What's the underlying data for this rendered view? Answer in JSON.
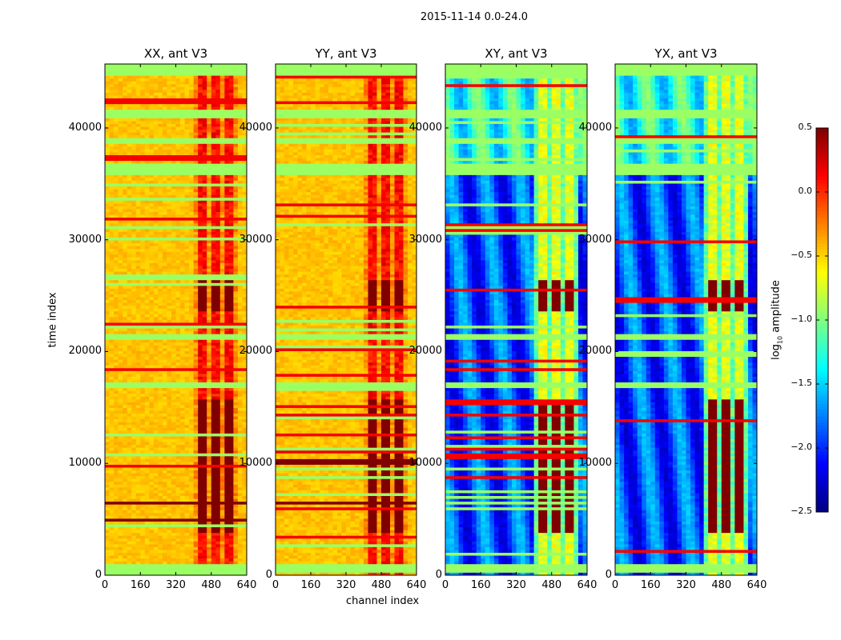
{
  "chart_data": {
    "type": "heatmap",
    "title": "2015-11-14 0.0-24.0",
    "xlabel": "channel index",
    "ylabel": "time index",
    "xlim": [
      0,
      640
    ],
    "ylim": [
      0,
      45720
    ],
    "xticks": [
      "0",
      "160",
      "320",
      "480",
      "640"
    ],
    "yticks": [
      "0",
      "10000",
      "20000",
      "30000",
      "40000"
    ],
    "xtick_values": [
      0,
      160,
      320,
      480,
      640
    ],
    "ytick_values": [
      0,
      10000,
      20000,
      30000,
      40000
    ],
    "colormap": "jet",
    "colorbar": {
      "label_main": "log",
      "label_sub": "10",
      "label_rest": " amplitude",
      "range": [
        -2.5,
        0.5
      ],
      "ticks": [
        "0.5",
        "0.0",
        "−0.5",
        "−1.0",
        "−1.5",
        "−2.0",
        "−2.5"
      ],
      "tick_values": [
        0.5,
        0,
        -0.5,
        -1,
        -1.5,
        -2,
        -2.5
      ]
    },
    "panels": [
      {
        "title": "XX, ant V3",
        "base": -0.45,
        "rfi_channels": [
          400,
          600
        ],
        "rfi_level": 0.1,
        "saturated_bands": [
          [
            4700,
            5200
          ],
          [
            6400,
            6700
          ],
          [
            9700,
            10000
          ],
          [
            3900,
            15800,
            "rfi"
          ],
          [
            23500,
            26500,
            "rfi"
          ]
        ],
        "flagged_bands": [
          [
            35700,
            36900
          ],
          [
            41000,
            41600
          ],
          [
            38500,
            39200
          ],
          [
            44600,
            45720
          ],
          [
            16800,
            17300
          ],
          [
            21000,
            21500
          ],
          [
            200,
            900
          ]
        ]
      },
      {
        "title": "YY, ant V3",
        "base": -0.45,
        "rfi_channels": [
          400,
          600
        ],
        "rfi_level": 0.1,
        "saturated_bands": [
          [
            9900,
            10500
          ],
          [
            6400,
            6600
          ],
          [
            3900,
            15800,
            "rfi"
          ],
          [
            23500,
            26500,
            "rfi"
          ]
        ],
        "flagged_bands": [
          [
            35700,
            36900
          ],
          [
            41000,
            41600
          ],
          [
            38500,
            39200
          ],
          [
            44600,
            45720
          ],
          [
            16800,
            17300
          ],
          [
            21000,
            21500
          ],
          [
            200,
            900
          ]
        ]
      },
      {
        "title": "XY, ant V3",
        "base": -1.9,
        "rfi_channels": [
          400,
          600
        ],
        "rfi_level": -0.7,
        "saturated_bands": [
          [
            3900,
            15800,
            "rfi"
          ],
          [
            23500,
            26500,
            "rfi"
          ]
        ],
        "flagged_bands": [
          [
            35700,
            36900
          ],
          [
            41000,
            41600
          ],
          [
            38500,
            39200
          ],
          [
            44600,
            45720
          ],
          [
            16800,
            17300
          ],
          [
            21000,
            21500
          ],
          [
            200,
            900
          ]
        ]
      },
      {
        "title": "YX, ant V3",
        "base": -1.9,
        "rfi_channels": [
          400,
          600
        ],
        "rfi_level": -0.7,
        "saturated_bands": [
          [
            3900,
            15800,
            "rfi"
          ],
          [
            23500,
            26500,
            "rfi"
          ]
        ],
        "flagged_bands": [
          [
            35700,
            36900
          ],
          [
            41000,
            41600
          ],
          [
            38500,
            39200
          ],
          [
            44600,
            45720
          ],
          [
            16800,
            17300
          ],
          [
            21000,
            21500
          ],
          [
            200,
            900
          ]
        ]
      }
    ]
  }
}
